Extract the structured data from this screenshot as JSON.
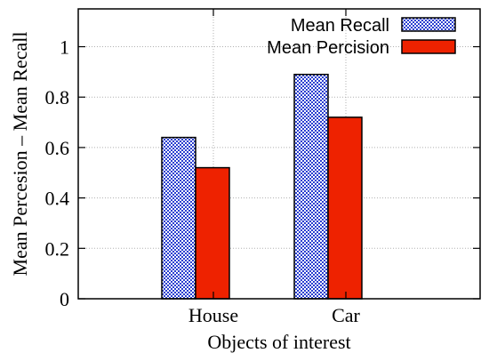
{
  "chart_data": {
    "type": "bar",
    "categories": [
      "House",
      "Car"
    ],
    "series": [
      {
        "name": "Mean Recall",
        "values": [
          0.64,
          0.89
        ],
        "color": "#2a3fd0",
        "pattern": "checker"
      },
      {
        "name": "Mean Percision",
        "values": [
          0.52,
          0.72
        ],
        "color": "#ee2200",
        "pattern": "solid"
      }
    ],
    "xlabel": "Objects of interest",
    "ylabel": "Mean Percesion – Mean Recall",
    "ylim": [
      0,
      1.15
    ],
    "yticks": [
      0,
      0.2,
      0.4,
      0.6,
      0.8,
      1
    ],
    "ytick_labels": [
      "0",
      "0.2",
      "0.4",
      "0.6",
      "0.8",
      "1"
    ],
    "grid": true,
    "legend_position": "top-right"
  }
}
